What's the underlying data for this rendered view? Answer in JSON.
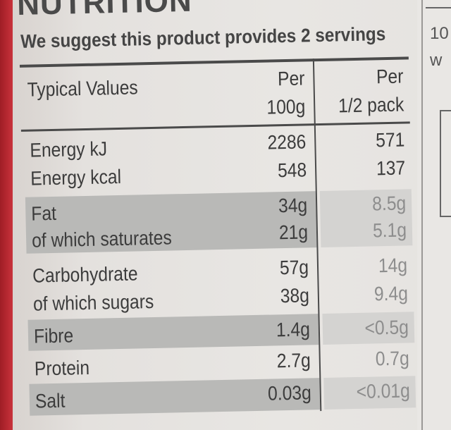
{
  "heading": "NUTRITION",
  "servings_note": "We suggest this product provides 2 servings",
  "columns": {
    "label": "Typical Values",
    "col1_line1": "Per",
    "col1_line2": "100g",
    "col2_line1": "Per",
    "col2_line2": "1/2 pack"
  },
  "rows": [
    {
      "name": "Energy kJ",
      "per100": "2286",
      "perhalf": "571"
    },
    {
      "name": "Energy kcal",
      "per100": "548",
      "perhalf": "137"
    },
    {
      "name": "Fat",
      "per100": "34g",
      "perhalf": "8.5g"
    },
    {
      "name": "of which saturates",
      "per100": "21g",
      "perhalf": "5.1g"
    },
    {
      "name": "Carbohydrate",
      "per100": "57g",
      "perhalf": "14g"
    },
    {
      "name": "of which sugars",
      "per100": "38g",
      "perhalf": "9.4g"
    },
    {
      "name": "Fibre",
      "per100": "1.4g",
      "perhalf": "<0.5g"
    },
    {
      "name": "Protein",
      "per100": "2.7g",
      "perhalf": "0.7g"
    },
    {
      "name": "Salt",
      "per100": "0.03g",
      "perhalf": "<0.01g"
    }
  ],
  "side_panel": {
    "text1": "10",
    "text2": "w"
  }
}
